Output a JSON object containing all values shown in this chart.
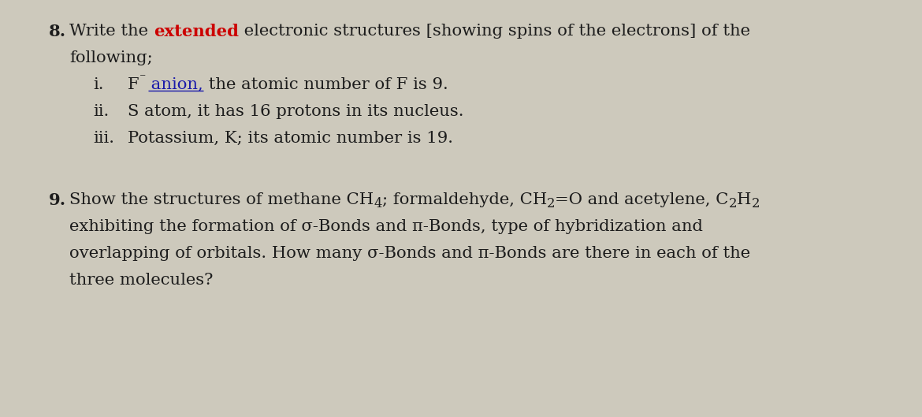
{
  "background_color": "#cdc9bc",
  "fig_width": 11.7,
  "fig_height": 5.29,
  "dpi": 100,
  "font_size": 15.2,
  "text_color": "#1c1c1c",
  "red_color": "#cc0000",
  "blue_color": "#1a1aaa",
  "q8_num": "8.",
  "q8_line1_a": "Write the ",
  "q8_line1_b": "extended",
  "q8_line1_c": " electronic structures [showing spins of the electrons] of the",
  "q8_line2": "following;",
  "q8_i_num": "i.",
  "q8_i_F": "F",
  "q8_i_sup": "⁻",
  "q8_i_anion": " anion,",
  "q8_i_rest": " the atomic number of F is 9.",
  "q8_ii_num": "ii.",
  "q8_ii_text": "S atom, it has 16 protons in its nucleus.",
  "q8_iii_num": "iii.",
  "q8_iii_text": "Potassium, K; its atomic number is 19.",
  "q9_num": "9.",
  "q9_line1_a": "Show the structures of methane CH",
  "q9_line1_b": "4",
  "q9_line1_c": "; formaldehyde, CH",
  "q9_line1_d": "2",
  "q9_line1_e": "=O and acetylene, C",
  "q9_line1_f": "2",
  "q9_line1_g": "H",
  "q9_line1_h": "2",
  "q9_line2": "exhibiting the formation of σ-Bonds and π-Bonds, type of hybridization and",
  "q9_line3_a": "overlapping of orbitals. How m",
  "q9_line3_b": "any σ-Bonds and π-Bonds are there in each of the",
  "q9_line4": "three molecules?"
}
